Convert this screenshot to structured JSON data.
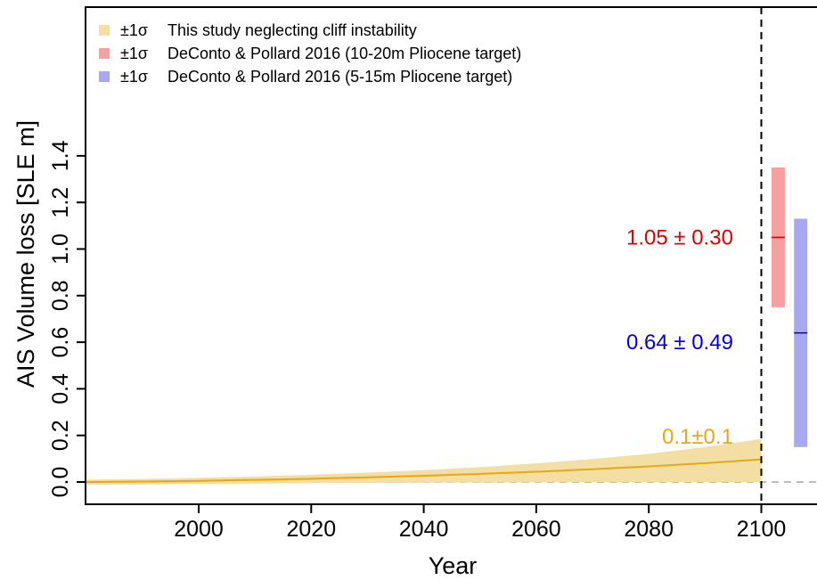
{
  "chart_data": {
    "type": "area",
    "title": "",
    "xlabel": "Year",
    "ylabel": "AIS Volume loss [SLE m]",
    "xlim": [
      1980,
      2110
    ],
    "ylim": [
      -0.02,
      1.4
    ],
    "x_ticks": [
      "2000",
      "2020",
      "2040",
      "2060",
      "2080",
      "2100"
    ],
    "y_ticks": [
      "0.0",
      "0.2",
      "0.4",
      "0.6",
      "0.8",
      "1.0",
      "1.2",
      "1.4"
    ],
    "grid": false,
    "legend_position": "top-left",
    "zero_line": 0,
    "vertical_marker_year": 2100,
    "legend": [
      {
        "symbol": "±1σ",
        "label": "This study neglecting cliff instability",
        "color": "#f3dea3"
      },
      {
        "symbol": "±1σ",
        "label": "DeConto & Pollard 2016 (10-20m Pliocene target)",
        "color": "#f7a0a0"
      },
      {
        "symbol": "±1σ",
        "label": "DeConto & Pollard 2016 (5-15m Pliocene target)",
        "color": "#a8a8f0"
      }
    ],
    "series": [
      {
        "label_ref": 0,
        "color": "#e6a817",
        "band_color": "#f3dea3",
        "x": [
          1980,
          1990,
          2000,
          2010,
          2020,
          2030,
          2040,
          2050,
          2060,
          2070,
          2080,
          2090,
          2100
        ],
        "mean": [
          0.0,
          0.002,
          0.005,
          0.009,
          0.014,
          0.02,
          0.027,
          0.035,
          0.044,
          0.055,
          0.067,
          0.081,
          0.097
        ],
        "upper": [
          0.01,
          0.013,
          0.018,
          0.024,
          0.031,
          0.04,
          0.051,
          0.064,
          0.08,
          0.099,
          0.121,
          0.15,
          0.185
        ],
        "lower": [
          -0.012,
          -0.011,
          -0.009,
          -0.007,
          -0.005,
          -0.004,
          -0.003,
          -0.002,
          -0.001,
          0.0,
          0.0,
          0.0,
          0.0
        ]
      }
    ],
    "bars": [
      {
        "label_ref": 1,
        "x": 2103,
        "mean": 1.05,
        "low": 0.75,
        "high": 1.35,
        "color": "#f7a0a0",
        "line_color": "#cc0000"
      },
      {
        "label_ref": 2,
        "x": 2107,
        "mean": 0.64,
        "low": 0.15,
        "high": 1.13,
        "color": "#a8a8f0",
        "line_color": "#0000cc"
      }
    ],
    "annotations": [
      {
        "text": "1.05 ± 0.30",
        "x": 2095,
        "y": 1.05,
        "color": "#dd0000"
      },
      {
        "text": "0.64 ± 0.49",
        "x": 2095,
        "y": 0.6,
        "color": "#0000dd"
      },
      {
        "text": "0.1±0.1",
        "x": 2095,
        "y": 0.195,
        "color": "#e6a817"
      }
    ]
  }
}
